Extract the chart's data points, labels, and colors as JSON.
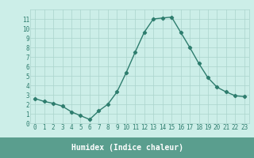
{
  "x": [
    0,
    1,
    2,
    3,
    4,
    5,
    6,
    7,
    8,
    9,
    10,
    11,
    12,
    13,
    14,
    15,
    16,
    17,
    18,
    19,
    20,
    21,
    22,
    23
  ],
  "y": [
    2.6,
    2.3,
    2.1,
    1.8,
    1.2,
    0.8,
    0.4,
    1.3,
    2.0,
    3.3,
    5.3,
    7.5,
    9.6,
    11.0,
    11.1,
    11.2,
    9.6,
    8.0,
    6.3,
    4.8,
    3.8,
    3.3,
    2.9,
    2.8
  ],
  "line_color": "#2e7d6e",
  "marker": "D",
  "marker_size": 2.2,
  "line_width": 1.0,
  "plot_bg_color": "#cceee8",
  "outer_bg_color": "#cceee8",
  "xlabel_bg_color": "#5a9e8e",
  "grid_color": "#aad4cc",
  "xlabel": "Humidex (Indice chaleur)",
  "ylim": [
    0,
    12
  ],
  "xlim": [
    -0.5,
    23.5
  ],
  "yticks": [
    0,
    1,
    2,
    3,
    4,
    5,
    6,
    7,
    8,
    9,
    10,
    11
  ],
  "xticks": [
    0,
    1,
    2,
    3,
    4,
    5,
    6,
    7,
    8,
    9,
    10,
    11,
    12,
    13,
    14,
    15,
    16,
    17,
    18,
    19,
    20,
    21,
    22,
    23
  ],
  "xlabel_fontsize": 7,
  "tick_fontsize": 5.5,
  "label_color": "#2e7d6e"
}
